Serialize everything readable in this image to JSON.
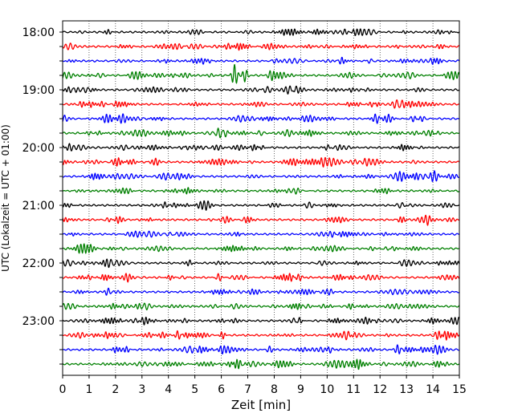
{
  "chart_data": {
    "type": "line",
    "title": "",
    "xlabel": "Zeit  [min]",
    "ylabel": "UTC (Lokalzeit = UTC + 01:00)",
    "xlim": [
      0,
      15
    ],
    "x_ticks": [
      0,
      1,
      2,
      3,
      4,
      5,
      6,
      7,
      8,
      9,
      10,
      11,
      12,
      13,
      14,
      15
    ],
    "y_tick_labels": [
      "18:00",
      "19:00",
      "20:00",
      "21:00",
      "22:00",
      "23:00"
    ],
    "row_start": "18:00",
    "row_interval_minutes": 15,
    "row_count": 24,
    "row_colors": [
      "#000000",
      "#ff0000",
      "#0000ff",
      "#008000"
    ],
    "grid": "vertical-dotted",
    "legend": "none",
    "events": [
      {
        "row": 3,
        "x": 6.5,
        "amplitude": 1.0
      },
      {
        "row": 3,
        "x": 6.9,
        "amplitude": 0.55
      },
      {
        "row": 6,
        "x": 2.0,
        "amplitude": 0.3
      },
      {
        "row": 7,
        "x": 5.9,
        "amplitude": 0.35
      },
      {
        "row": 8,
        "x": 2.7,
        "amplitude": 0.3
      },
      {
        "row": 8,
        "x": 4.7,
        "amplitude": 0.35
      },
      {
        "row": 8,
        "x": 10.0,
        "amplitude": 0.3
      },
      {
        "row": 13,
        "x": 13.8,
        "amplitude": 0.3
      },
      {
        "row": 17,
        "x": 5.9,
        "amplitude": 0.35
      },
      {
        "row": 17,
        "x": 14.3,
        "amplitude": 0.35
      },
      {
        "row": 18,
        "x": 1.7,
        "amplitude": 0.3
      },
      {
        "row": 21,
        "x": 4.4,
        "amplitude": 0.4
      },
      {
        "row": 22,
        "x": 10.1,
        "amplitude": 0.35
      },
      {
        "row": 22,
        "x": 12.7,
        "amplitude": 0.5
      }
    ]
  }
}
